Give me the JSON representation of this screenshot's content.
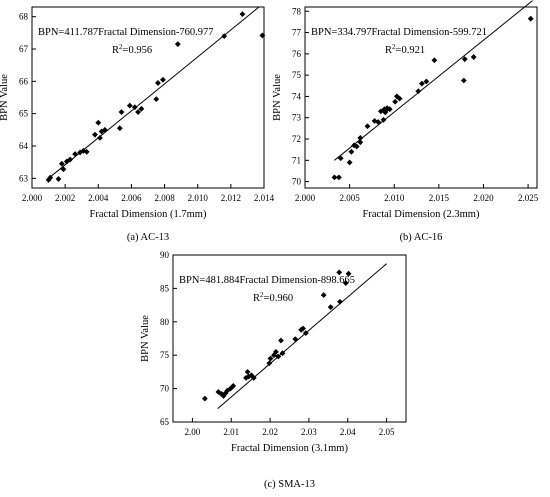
{
  "chart_data": [
    {
      "type": "scatter",
      "caption": "(a) AC-13",
      "xlabel": "Fractal Dimension (1.7mm)",
      "ylabel": "BPN Value",
      "equation": "BPN=411.787Fractal Dimension-760.977",
      "r2_value": "0.956",
      "xlim": [
        2.0,
        2.014
      ],
      "ylim": [
        62.7,
        68.3
      ],
      "xticks": [
        "2.000",
        "2.002",
        "2.004",
        "2.006",
        "2.008",
        "2.010",
        "2.012",
        "2.014"
      ],
      "yticks": [
        "63",
        "64",
        "65",
        "66",
        "67",
        "68"
      ],
      "x": [
        2.001,
        2.0011,
        2.0016,
        2.0018,
        2.0019,
        2.0021,
        2.0023,
        2.0026,
        2.0029,
        2.0031,
        2.0033,
        2.0038,
        2.004,
        2.0041,
        2.0042,
        2.0044,
        2.0053,
        2.0054,
        2.0059,
        2.0062,
        2.0064,
        2.0066,
        2.0075,
        2.0076,
        2.0079,
        2.0088,
        2.0116,
        2.0127,
        2.0139
      ],
      "y": [
        62.95,
        63.02,
        62.98,
        63.45,
        63.28,
        63.52,
        63.58,
        63.75,
        63.8,
        63.85,
        63.82,
        64.35,
        64.72,
        64.25,
        64.45,
        64.5,
        64.55,
        65.05,
        65.25,
        65.2,
        65.05,
        65.15,
        65.45,
        65.95,
        66.05,
        67.15,
        67.4,
        68.08,
        67.42
      ],
      "fit": [
        [
          2.001,
          63.0
        ],
        [
          2.0137,
          68.3
        ]
      ]
    },
    {
      "type": "scatter",
      "caption": "(b) AC-16",
      "xlabel": "Fractal Dimension (2.3mm)",
      "ylabel": "BPN Value",
      "equation": "BPN=334.797Fractal Dimension-599.721",
      "r2_value": "0.921",
      "xlim": [
        2.0,
        2.026
      ],
      "ylim": [
        69.7,
        78.2
      ],
      "xticks": [
        "2.000",
        "2.005",
        "2.010",
        "2.015",
        "2.020",
        "2.025"
      ],
      "yticks": [
        "70",
        "71",
        "72",
        "73",
        "74",
        "75",
        "76",
        "77",
        "78"
      ],
      "x": [
        2.0033,
        2.0038,
        2.004,
        2.005,
        2.0052,
        2.0055,
        2.0058,
        2.0062,
        2.0062,
        2.007,
        2.0078,
        2.0082,
        2.0085,
        2.0088,
        2.0089,
        2.009,
        2.0091,
        2.0092,
        2.0095,
        2.0101,
        2.0103,
        2.0106,
        2.0127,
        2.0131,
        2.0136,
        2.0145,
        2.0178,
        2.0179,
        2.0189,
        2.0253
      ],
      "y": [
        70.2,
        70.2,
        71.1,
        70.9,
        71.4,
        71.7,
        71.65,
        72.05,
        71.85,
        72.6,
        72.85,
        72.8,
        73.3,
        72.9,
        73.4,
        73.25,
        73.35,
        73.45,
        73.4,
        73.75,
        74.0,
        73.9,
        74.25,
        74.6,
        74.7,
        75.7,
        74.75,
        75.75,
        75.85,
        77.65
      ],
      "fit": [
        [
          2.0033,
          71.0
        ],
        [
          2.0255,
          78.5
        ]
      ]
    },
    {
      "type": "scatter",
      "caption": "(c) SMA-13",
      "xlabel": "Fractal Dimension (3.1mm)",
      "ylabel": "BPN Value",
      "equation": "BPN=481.884Fractal Dimension-898.665",
      "r2_value": "0.960",
      "xlim": [
        1.995,
        2.055
      ],
      "ylim": [
        65,
        90
      ],
      "xticks": [
        "2.00",
        "2.01",
        "2.02",
        "2.03",
        "2.04",
        "2.05"
      ],
      "yticks": [
        "65",
        "70",
        "75",
        "80",
        "85",
        "90"
      ],
      "x": [
        2.0032,
        2.0067,
        2.0075,
        2.008,
        2.0085,
        2.009,
        2.0098,
        2.0105,
        2.0138,
        2.0142,
        2.0145,
        2.0152,
        2.0158,
        2.0198,
        2.0201,
        2.021,
        2.0215,
        2.0221,
        2.0228,
        2.0232,
        2.0265,
        2.028,
        2.0285,
        2.0292,
        2.0338,
        2.0356,
        2.0378,
        2.038,
        2.0395,
        2.0402
      ],
      "y": [
        68.5,
        69.5,
        69.2,
        68.9,
        69.3,
        69.7,
        70.0,
        70.4,
        71.6,
        72.5,
        71.8,
        72.0,
        71.6,
        73.8,
        74.5,
        75.0,
        75.5,
        74.8,
        77.2,
        75.3,
        77.4,
        78.8,
        79.0,
        78.3,
        84.0,
        82.2,
        87.4,
        83.0,
        85.8,
        87.2
      ],
      "fit": [
        [
          2.0065,
          67.0
        ],
        [
          2.05,
          88.7
        ]
      ]
    }
  ]
}
